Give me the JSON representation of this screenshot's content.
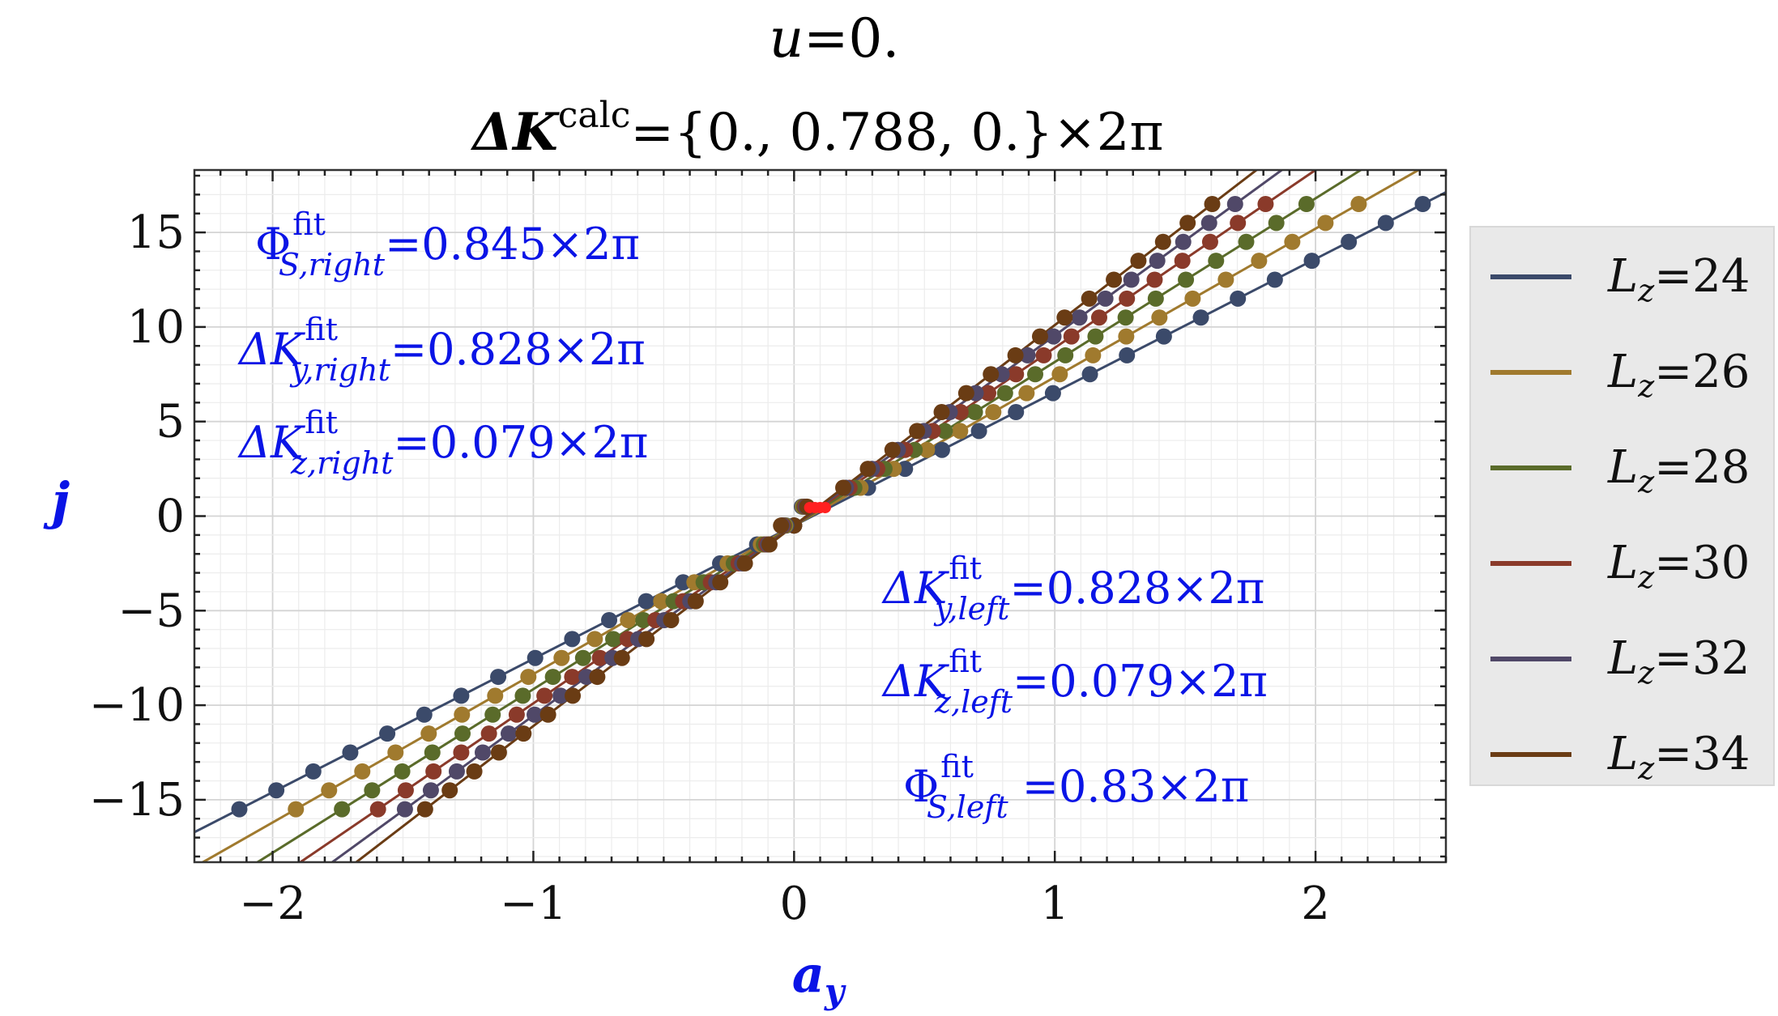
{
  "chart_data": {
    "type": "scatter",
    "title_line1": {
      "var": "u",
      "eq": "=0."
    },
    "title_line2": {
      "delta": "Δ",
      "K": "K",
      "sup": "calc",
      "rest": "={0., 0.788, 0.}×2π"
    },
    "xlabel": {
      "main": "a",
      "sub": "y"
    },
    "ylabel": "j",
    "xlim": [
      -2.3,
      2.5
    ],
    "ylim": [
      -18.3,
      18.3
    ],
    "x_ticks": [
      {
        "v": -2,
        "label": "−2"
      },
      {
        "v": -1,
        "label": "−1"
      },
      {
        "v": 0,
        "label": "0"
      },
      {
        "v": 1,
        "label": "1"
      },
      {
        "v": 2,
        "label": "2"
      }
    ],
    "y_ticks": [
      {
        "v": 15,
        "label": "15"
      },
      {
        "v": 10,
        "label": "10"
      },
      {
        "v": 5,
        "label": "5"
      },
      {
        "v": 0,
        "label": "0"
      },
      {
        "v": -5,
        "label": "−5"
      },
      {
        "v": -10,
        "label": "−10"
      },
      {
        "v": -15,
        "label": "−15"
      }
    ],
    "grid": true,
    "legend_position": "right",
    "series": [
      {
        "name": "L_z=24",
        "Lz": "24",
        "color": "#3b4a6a",
        "slope": 7.05
      },
      {
        "name": "L_z=26",
        "Lz": "26",
        "color": "#a07a2e",
        "slope": 7.85
      },
      {
        "name": "L_z=28",
        "Lz": "28",
        "color": "#5a6b2a",
        "slope": 8.65
      },
      {
        "name": "L_z=30",
        "Lz": "30",
        "color": "#8a3a2a",
        "slope": 9.4
      },
      {
        "name": "L_z=32",
        "Lz": "32",
        "color": "#504868",
        "slope": 10.05
      },
      {
        "name": "L_z=34",
        "Lz": "34",
        "color": "#6a3c14",
        "slope": 10.6
      }
    ],
    "annotations": {
      "phi_right": {
        "sym": "Φ",
        "sup": "fit",
        "sub": "S,right",
        "rest": "=0.845×2π"
      },
      "dky_right": {
        "sym": "ΔK",
        "sup": "fit",
        "sub": "y,right",
        "rest": "=0.828×2π"
      },
      "dkz_right": {
        "sym": "ΔK",
        "sup": "fit",
        "sub": "z,right",
        "rest": "=0.079×2π"
      },
      "dky_left": {
        "sym": "ΔK",
        "sup": "fit",
        "sub": "y,left",
        "rest": "=0.828×2π"
      },
      "dkz_left": {
        "sym": "ΔK",
        "sup": "fit",
        "sub": "z,left",
        "rest": "=0.079×2π"
      },
      "phi_left": {
        "sym": "Φ",
        "sup": "fit",
        "sub": "S,left",
        "rest": " =0.83×2π"
      }
    },
    "annotation_color": "#0a14e6",
    "highlight_color": "#ff2020"
  }
}
